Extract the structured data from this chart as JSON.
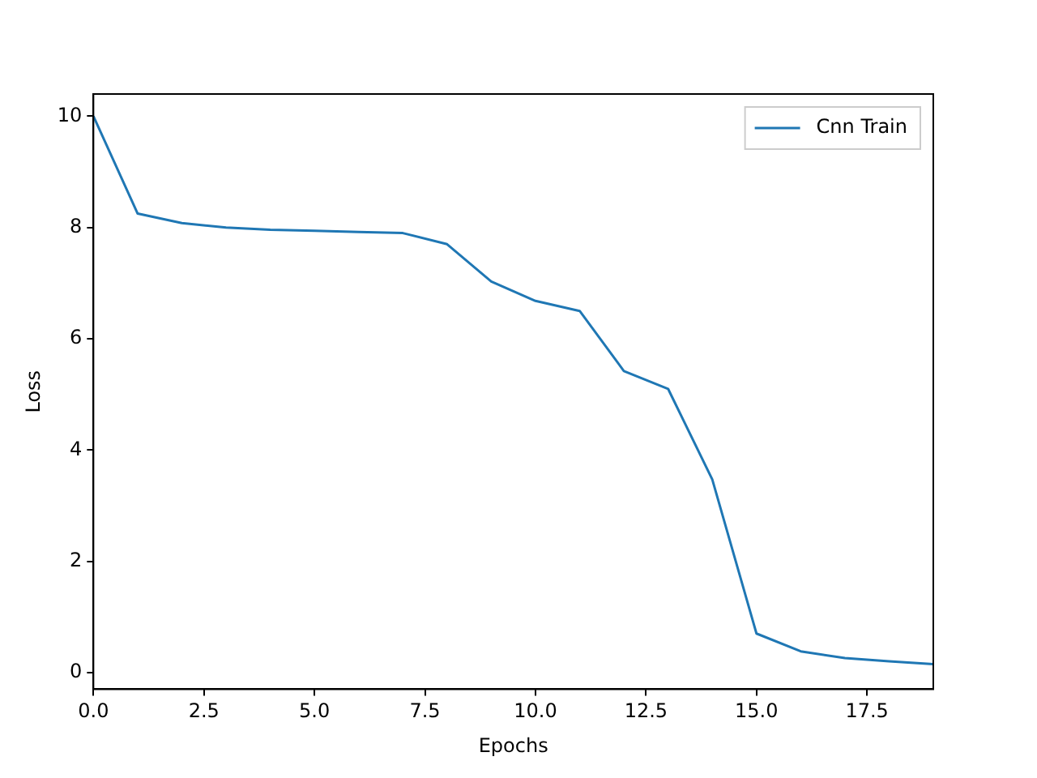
{
  "chart_data": {
    "type": "line",
    "xlabel": "Epochs",
    "ylabel": "Loss",
    "x": [
      0,
      1,
      2,
      3,
      4,
      5,
      6,
      7,
      8,
      9,
      10,
      11,
      12,
      13,
      14,
      15,
      16,
      17,
      18,
      19
    ],
    "series": [
      {
        "name": "Cnn Train",
        "color": "#1f77b4",
        "values": [
          10.0,
          8.25,
          8.08,
          8.0,
          7.96,
          7.94,
          7.92,
          7.9,
          7.7,
          7.03,
          6.68,
          6.5,
          5.42,
          5.1,
          3.47,
          0.7,
          0.38,
          0.26,
          0.2,
          0.15
        ]
      }
    ],
    "xlim": [
      0,
      19
    ],
    "xticks": [
      {
        "value": 0,
        "label": "0.0"
      },
      2.5,
      {
        "value": 5,
        "label": "5.0"
      },
      7.5,
      {
        "value": 10,
        "label": "10.0"
      },
      12.5,
      {
        "value": 15,
        "label": "15.0"
      },
      17.5
    ],
    "ylim": [
      -0.3,
      10.4
    ],
    "yticks": [
      0,
      2,
      4,
      6,
      8,
      10
    ],
    "legend": "top right",
    "marker": "none",
    "line_style": "solid",
    "grid": false
  }
}
